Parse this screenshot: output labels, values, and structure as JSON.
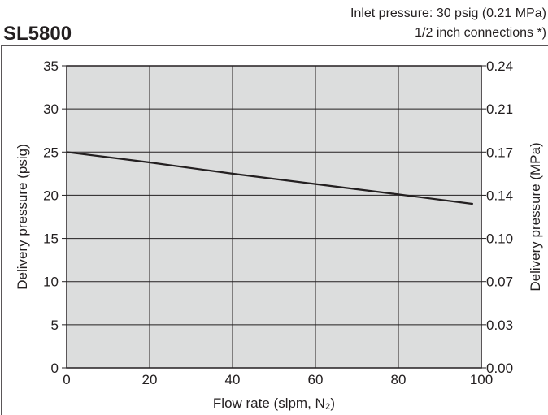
{
  "chart_data": {
    "type": "line",
    "title": "SL5800",
    "notes": [
      "Inlet pressure: 30 psig (0.21 MPa)",
      "1/2 inch connections *)"
    ],
    "xlabel": "Flow rate (slpm, N₂)",
    "ylabel": "Delivery pressure (psig)",
    "y2label": "Delivery pressure (MPa)",
    "xlim": [
      0,
      100
    ],
    "ylim": [
      0,
      35
    ],
    "x_ticks": [
      "0",
      "20",
      "40",
      "60",
      "80",
      "100"
    ],
    "y_ticks": [
      "0",
      "5",
      "10",
      "15",
      "20",
      "25",
      "30",
      "35"
    ],
    "y2_ticks": [
      "0.00",
      "0.03",
      "0.07",
      "0.10",
      "0.14",
      "0.17",
      "0.21",
      "0.24"
    ],
    "grid": true,
    "series": [
      {
        "x": [
          0,
          20,
          40,
          60,
          80,
          98
        ],
        "y": [
          25,
          23.8,
          22.5,
          21.3,
          20.1,
          19
        ]
      }
    ],
    "colors": {
      "plot_bg": "#dcdddd",
      "line": "#231f20",
      "grid": "#231f20"
    }
  }
}
